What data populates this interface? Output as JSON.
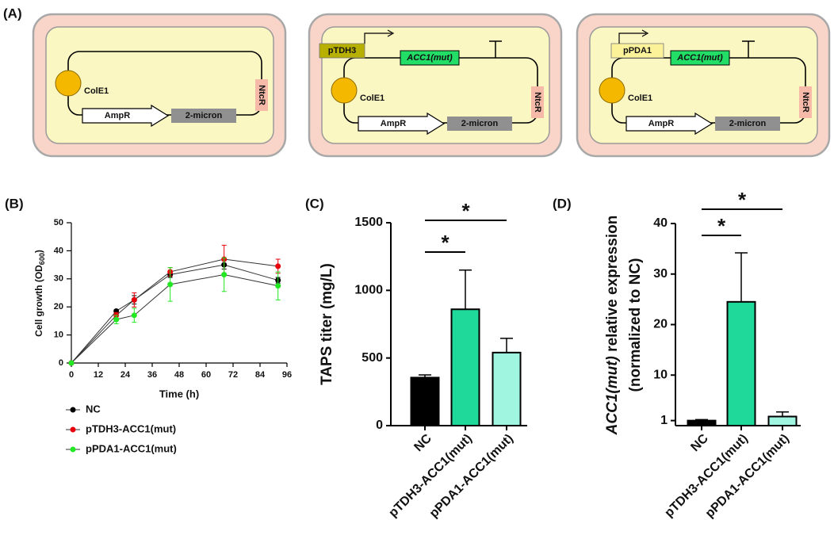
{
  "diagram": {
    "label": "(A)",
    "plasmids": [
      {
        "origin": "ColE1",
        "marker": "NtcR",
        "resistance": "AmpR",
        "replicon": "2-micron"
      },
      {
        "promoter": "pTDH3",
        "gene": "ACC1(mut)",
        "origin": "ColE1",
        "marker": "NtcR",
        "resistance": "AmpR",
        "replicon": "2-micron"
      },
      {
        "promoter": "pPDA1",
        "gene": "ACC1(mut)",
        "origin": "ColE1",
        "marker": "NtcR",
        "resistance": "AmpR",
        "replicon": "2-micron"
      }
    ]
  },
  "chart_data": [
    {
      "type": "line",
      "label": "(B)",
      "x_label": "Time  (h)",
      "y_label": [
        "Cell growth  (OD",
        "600",
        ")"
      ],
      "x": [
        0,
        20,
        28,
        44,
        68,
        92
      ],
      "series": [
        {
          "name": "NC",
          "color": "#000000",
          "values": [
            0,
            18.5,
            22.5,
            31.5,
            35,
            29.5
          ],
          "errors": [
            0,
            0.5,
            1.5,
            1,
            1.5,
            1
          ]
        },
        {
          "name": "pTDH3-ACC1(mut)",
          "color": "#e8000b",
          "values": [
            0,
            17,
            22.5,
            32.5,
            37,
            34.5
          ],
          "errors": [
            0,
            1,
            2.5,
            1.5,
            5,
            2.5
          ]
        },
        {
          "name": "pPDA1-ACC1(mut)",
          "color": "#22e822",
          "values": [
            0,
            15.5,
            17,
            28,
            31.5,
            27.5
          ],
          "errors": [
            0,
            1.5,
            2.5,
            6,
            6,
            5
          ]
        }
      ],
      "xlim": [
        0,
        96
      ],
      "xticks": [
        0,
        12,
        24,
        36,
        48,
        60,
        72,
        84,
        96
      ],
      "ylim": [
        0,
        50
      ],
      "yticks": [
        0,
        10,
        20,
        30,
        40,
        50
      ]
    },
    {
      "type": "bar",
      "label": "(C)",
      "y_label": "TAPS titer (mg/L)",
      "categories": [
        "NC",
        "pTDH3-ACC1(mut)",
        "pPDA1-ACC1(mut)"
      ],
      "values": [
        355,
        860,
        540
      ],
      "errors": [
        20,
        290,
        105
      ],
      "colors": [
        "#000000",
        "#1fd99a",
        "#a0f5e1"
      ],
      "ylim": [
        0,
        1500
      ],
      "yticks": [
        0,
        500,
        1000,
        1500
      ],
      "comparisons": [
        {
          "groups": [
            "NC",
            "pTDH3-ACC1(mut)"
          ],
          "label": "*"
        },
        {
          "groups": [
            "NC",
            "pPDA1-ACC1(mut)"
          ],
          "label": "*"
        }
      ]
    },
    {
      "type": "bar",
      "label": "(D)",
      "y_label": {
        "italic": "ACC1(mut)",
        "rest": " relative expression",
        "line2": "(normalized to NC)"
      },
      "categories": [
        "NC",
        "pTDH3-ACC1(mut)",
        "pPDA1-ACC1(mut)"
      ],
      "values": [
        1,
        24.5,
        1.8
      ],
      "errors": [
        0.2,
        9.7,
        0.9
      ],
      "colors": [
        "#000000",
        "#1fd99a",
        "#a0f5e1"
      ],
      "ylim": [
        0,
        40
      ],
      "yticks": [
        1,
        10,
        20,
        30,
        40
      ],
      "comparisons": [
        {
          "groups": [
            "NC",
            "pTDH3-ACC1(mut)"
          ],
          "label": "*"
        },
        {
          "groups": [
            "NC",
            "pPDA1-ACC1(mut)"
          ],
          "label": "*"
        }
      ]
    }
  ]
}
